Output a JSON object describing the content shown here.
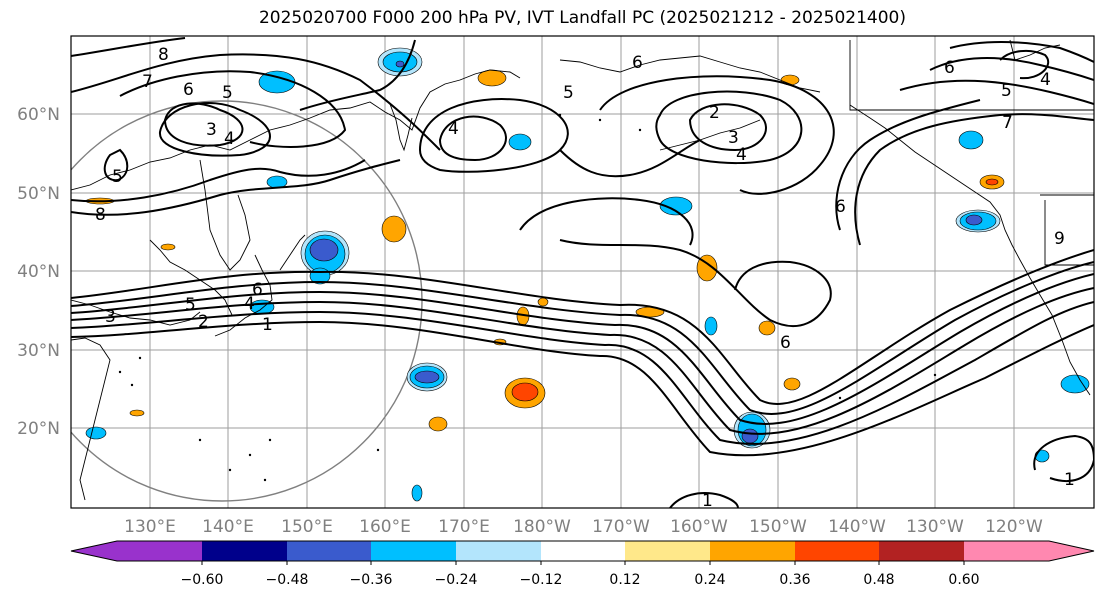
{
  "title": "2025020700 F000 200 hPa PV, IVT Landfall PC (2025021212 - 2025021400)",
  "lat_labels": [
    "60°N",
    "50°N",
    "40°N",
    "30°N",
    "20°N"
  ],
  "lon_labels": [
    "130°E",
    "140°E",
    "150°E",
    "160°E",
    "170°E",
    "180°W",
    "170°W",
    "160°W",
    "150°W",
    "140°W",
    "130°W",
    "120°W"
  ],
  "colorbar": {
    "ticks": [
      "−0.60",
      "−0.48",
      "−0.36",
      "−0.24",
      "−0.12",
      "0.12",
      "0.24",
      "0.36",
      "0.48",
      "0.60"
    ],
    "colors": [
      "#9932cc",
      "#00008b",
      "#3a5bcd",
      "#00bfff",
      "#b3e5fc",
      "#ffffff",
      "#ffe88a",
      "#ffa500",
      "#ff4500",
      "#b22222",
      "#ff88b0"
    ]
  },
  "pv_contour_labels": [
    "8",
    "7",
    "6",
    "5",
    "3",
    "4",
    "6",
    "5",
    "4",
    "2",
    "3",
    "4",
    "6",
    "5",
    "4",
    "7",
    "5",
    "8",
    "9",
    "6",
    "5",
    "4",
    "3",
    "2",
    "1",
    "6",
    "6",
    "1",
    "1"
  ]
}
